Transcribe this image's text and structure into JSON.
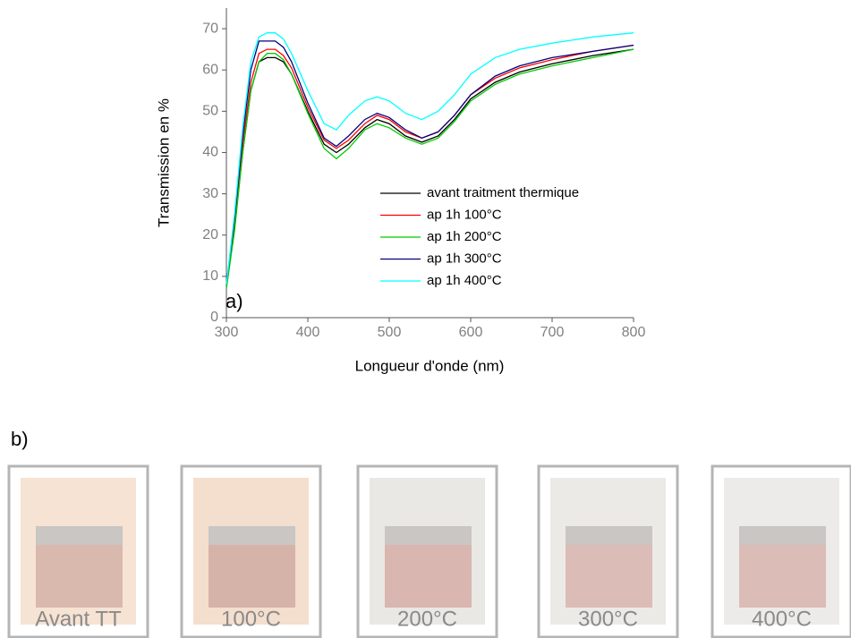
{
  "chart_data": {
    "type": "line",
    "annotation": "a)",
    "xlabel": "Longueur d'onde (nm)",
    "ylabel": "Transmission en %",
    "x": [
      300,
      310,
      320,
      330,
      340,
      350,
      360,
      370,
      380,
      400,
      420,
      435,
      450,
      470,
      485,
      500,
      520,
      540,
      560,
      580,
      600,
      630,
      660,
      700,
      750,
      800
    ],
    "series": [
      {
        "name": "avant traitment thermique",
        "color": "#000000",
        "values": [
          8,
          22,
          40,
          55,
          62,
          63,
          63,
          62,
          59,
          50,
          42,
          40,
          42,
          46,
          48,
          47,
          44,
          42.5,
          44,
          48,
          53,
          57,
          59.5,
          61.5,
          63.5,
          65
        ]
      },
      {
        "name": "ap 1h 100°C",
        "color": "#ff0000",
        "values": [
          8,
          23,
          42,
          57,
          64,
          65,
          65,
          63.5,
          60.5,
          51,
          43,
          41,
          43,
          47,
          49,
          48,
          45,
          43.5,
          45,
          49,
          54,
          58,
          60.5,
          62.5,
          64.5,
          66
        ]
      },
      {
        "name": "ap 1h 200°C",
        "color": "#00cc00",
        "values": [
          7,
          21,
          40,
          55,
          62,
          64,
          64,
          62.5,
          59,
          49.5,
          41,
          38.5,
          41,
          45.5,
          47,
          46,
          43.5,
          42,
          43.5,
          47.5,
          52.5,
          56.5,
          59,
          61,
          63,
          65
        ]
      },
      {
        "name": "ap 1h 300°C",
        "color": "#000080",
        "values": [
          8,
          24,
          44,
          60,
          67,
          67,
          67,
          65.5,
          62,
          52,
          43.5,
          41.5,
          44,
          48,
          49.5,
          48.5,
          45.5,
          43.5,
          45,
          49,
          54,
          58.5,
          61,
          63,
          64.5,
          66
        ]
      },
      {
        "name": "ap 1h 400°C",
        "color": "#00ffff",
        "values": [
          8,
          25,
          46,
          62,
          68,
          69,
          69,
          67.5,
          64,
          55,
          47,
          45.5,
          49,
          52.5,
          53.5,
          52.5,
          49.5,
          48,
          50,
          54,
          59,
          63,
          65,
          66.5,
          68,
          69
        ]
      }
    ],
    "xlim": [
      300,
      800
    ],
    "xticks": [
      300,
      400,
      500,
      600,
      700,
      800
    ],
    "ylim": [
      0,
      75
    ],
    "yticks": [
      0,
      10,
      20,
      30,
      40,
      50,
      60,
      70
    ],
    "legend": "lower right"
  },
  "panel_b": {
    "label": "b)",
    "photos": [
      "Avant TT",
      "100°C",
      "200°C",
      "300°C",
      "400°C"
    ]
  }
}
